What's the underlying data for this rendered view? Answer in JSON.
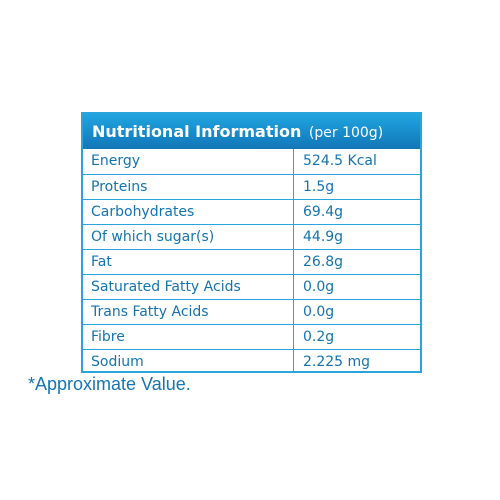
{
  "header": {
    "title": "Nutritional Information",
    "subtitle": "(per 100g)"
  },
  "rows": [
    {
      "name": "Energy",
      "value": "524.5 Kcal"
    },
    {
      "name": "Proteins",
      "value": "1.5g"
    },
    {
      "name": "Carbohydrates",
      "value": "69.4g"
    },
    {
      "name": "Of which sugar(s)",
      "value": "44.9g"
    },
    {
      "name": "Fat",
      "value": "26.8g"
    },
    {
      "name": "Saturated Fatty Acids",
      "value": "0.0g"
    },
    {
      "name": "Trans Fatty Acids",
      "value": "0.0g"
    },
    {
      "name": "Fibre",
      "value": "0.2g"
    },
    {
      "name": "Sodium",
      "value": "2.225 mg"
    }
  ],
  "footnote": "*Approximate Value.",
  "colors": {
    "header_top": "#1fa5e0",
    "header_bottom": "#1276b8",
    "border": "#2aa4dd",
    "text": "#1474b0"
  }
}
